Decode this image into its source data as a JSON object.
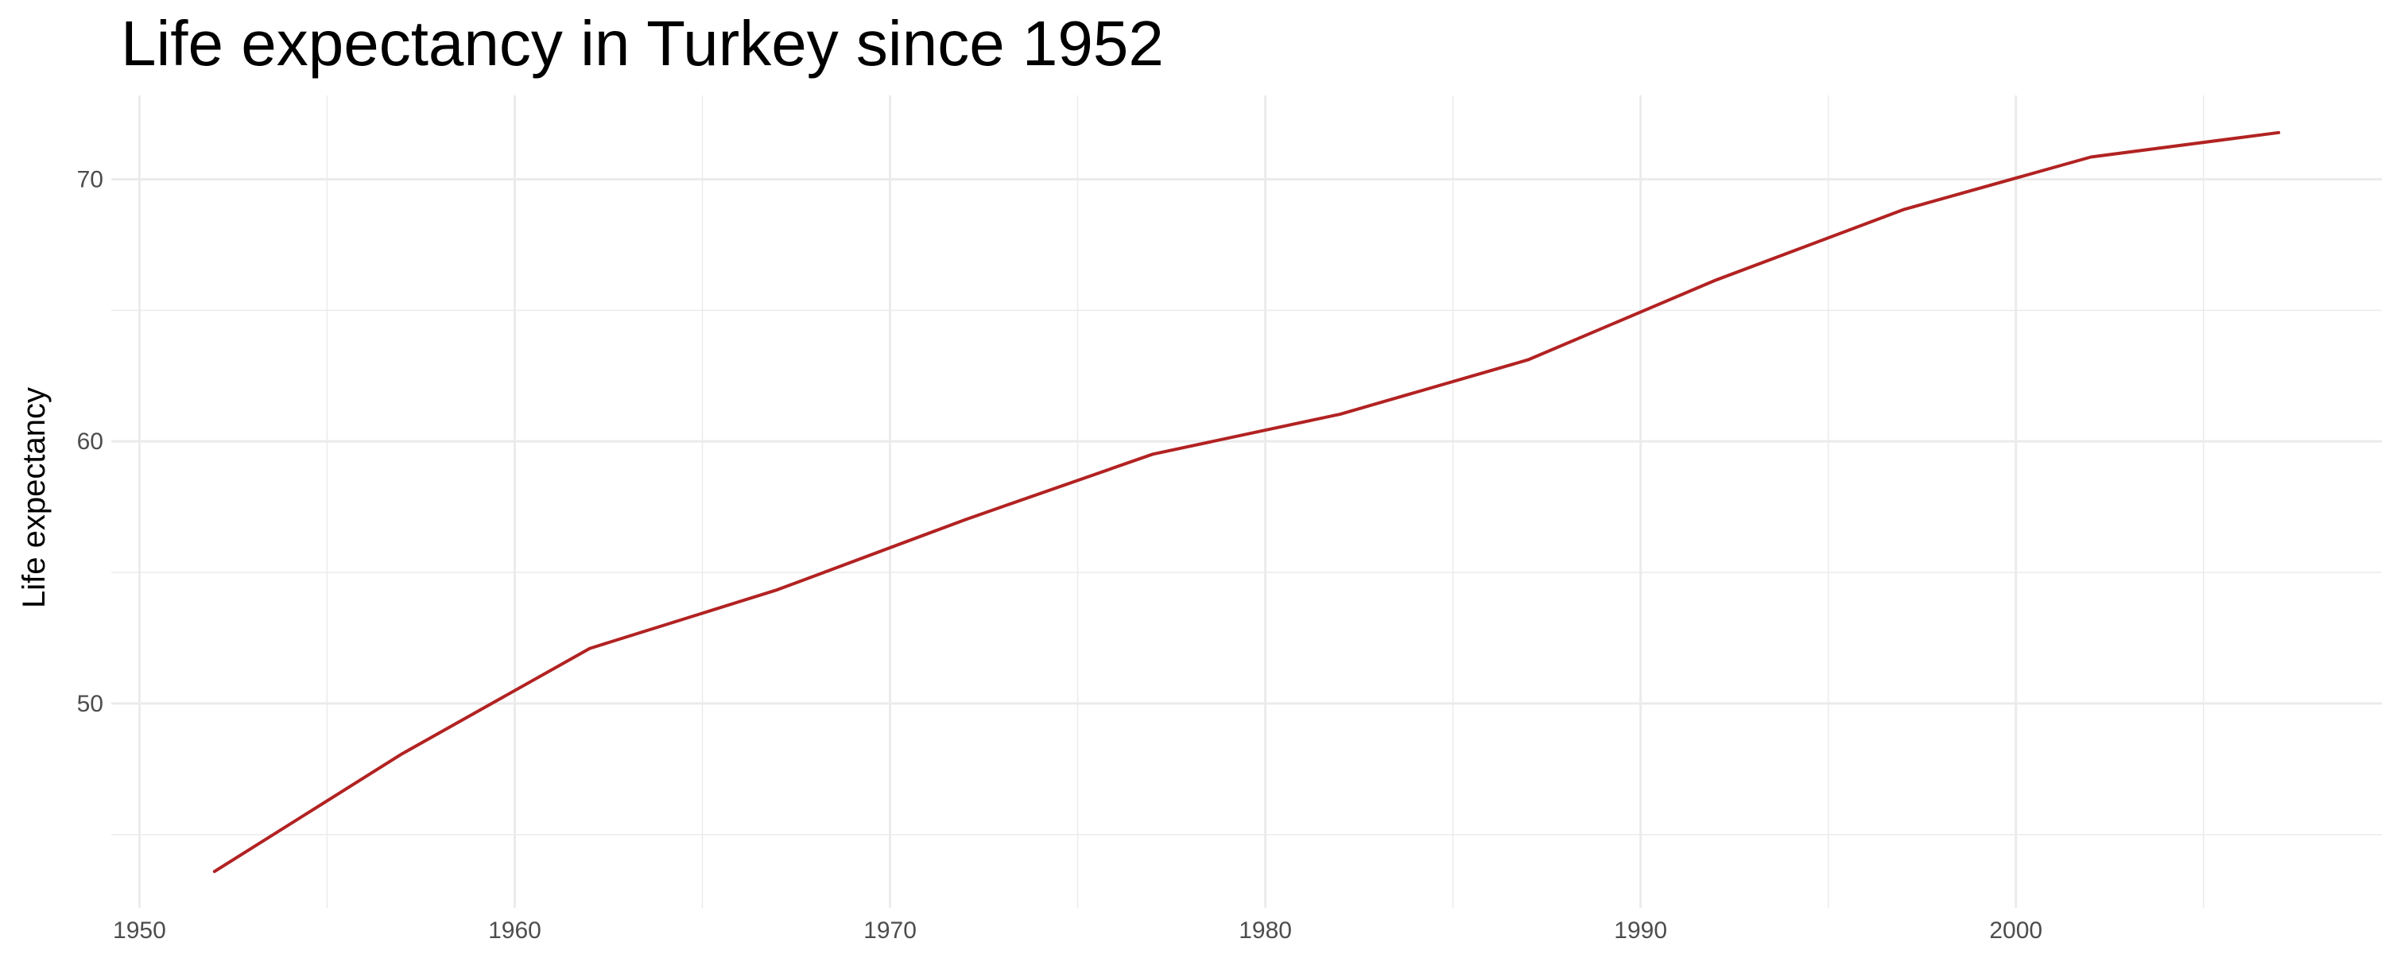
{
  "chart_data": {
    "type": "line",
    "title": "Life expectancy in Turkey since 1952",
    "xlabel": "",
    "ylabel": "Life expectancy",
    "x": [
      1952,
      1957,
      1962,
      1967,
      1972,
      1977,
      1982,
      1987,
      1992,
      1997,
      2002,
      2007
    ],
    "series": [
      {
        "values": [
          43.59,
          48.08,
          52.1,
          54.34,
          57.01,
          59.51,
          61.04,
          63.11,
          66.15,
          68.84,
          70.85,
          71.78
        ],
        "color": "#b22222"
      }
    ],
    "xlim": [
      1949.25,
      2009.75
    ],
    "ylim": [
      42.2,
      73.2
    ],
    "x_ticks": [
      "1950",
      "1960",
      "1970",
      "1980",
      "1990",
      "2000"
    ],
    "y_ticks": [
      "50",
      "60",
      "70"
    ],
    "grid": true,
    "legend": "none"
  }
}
